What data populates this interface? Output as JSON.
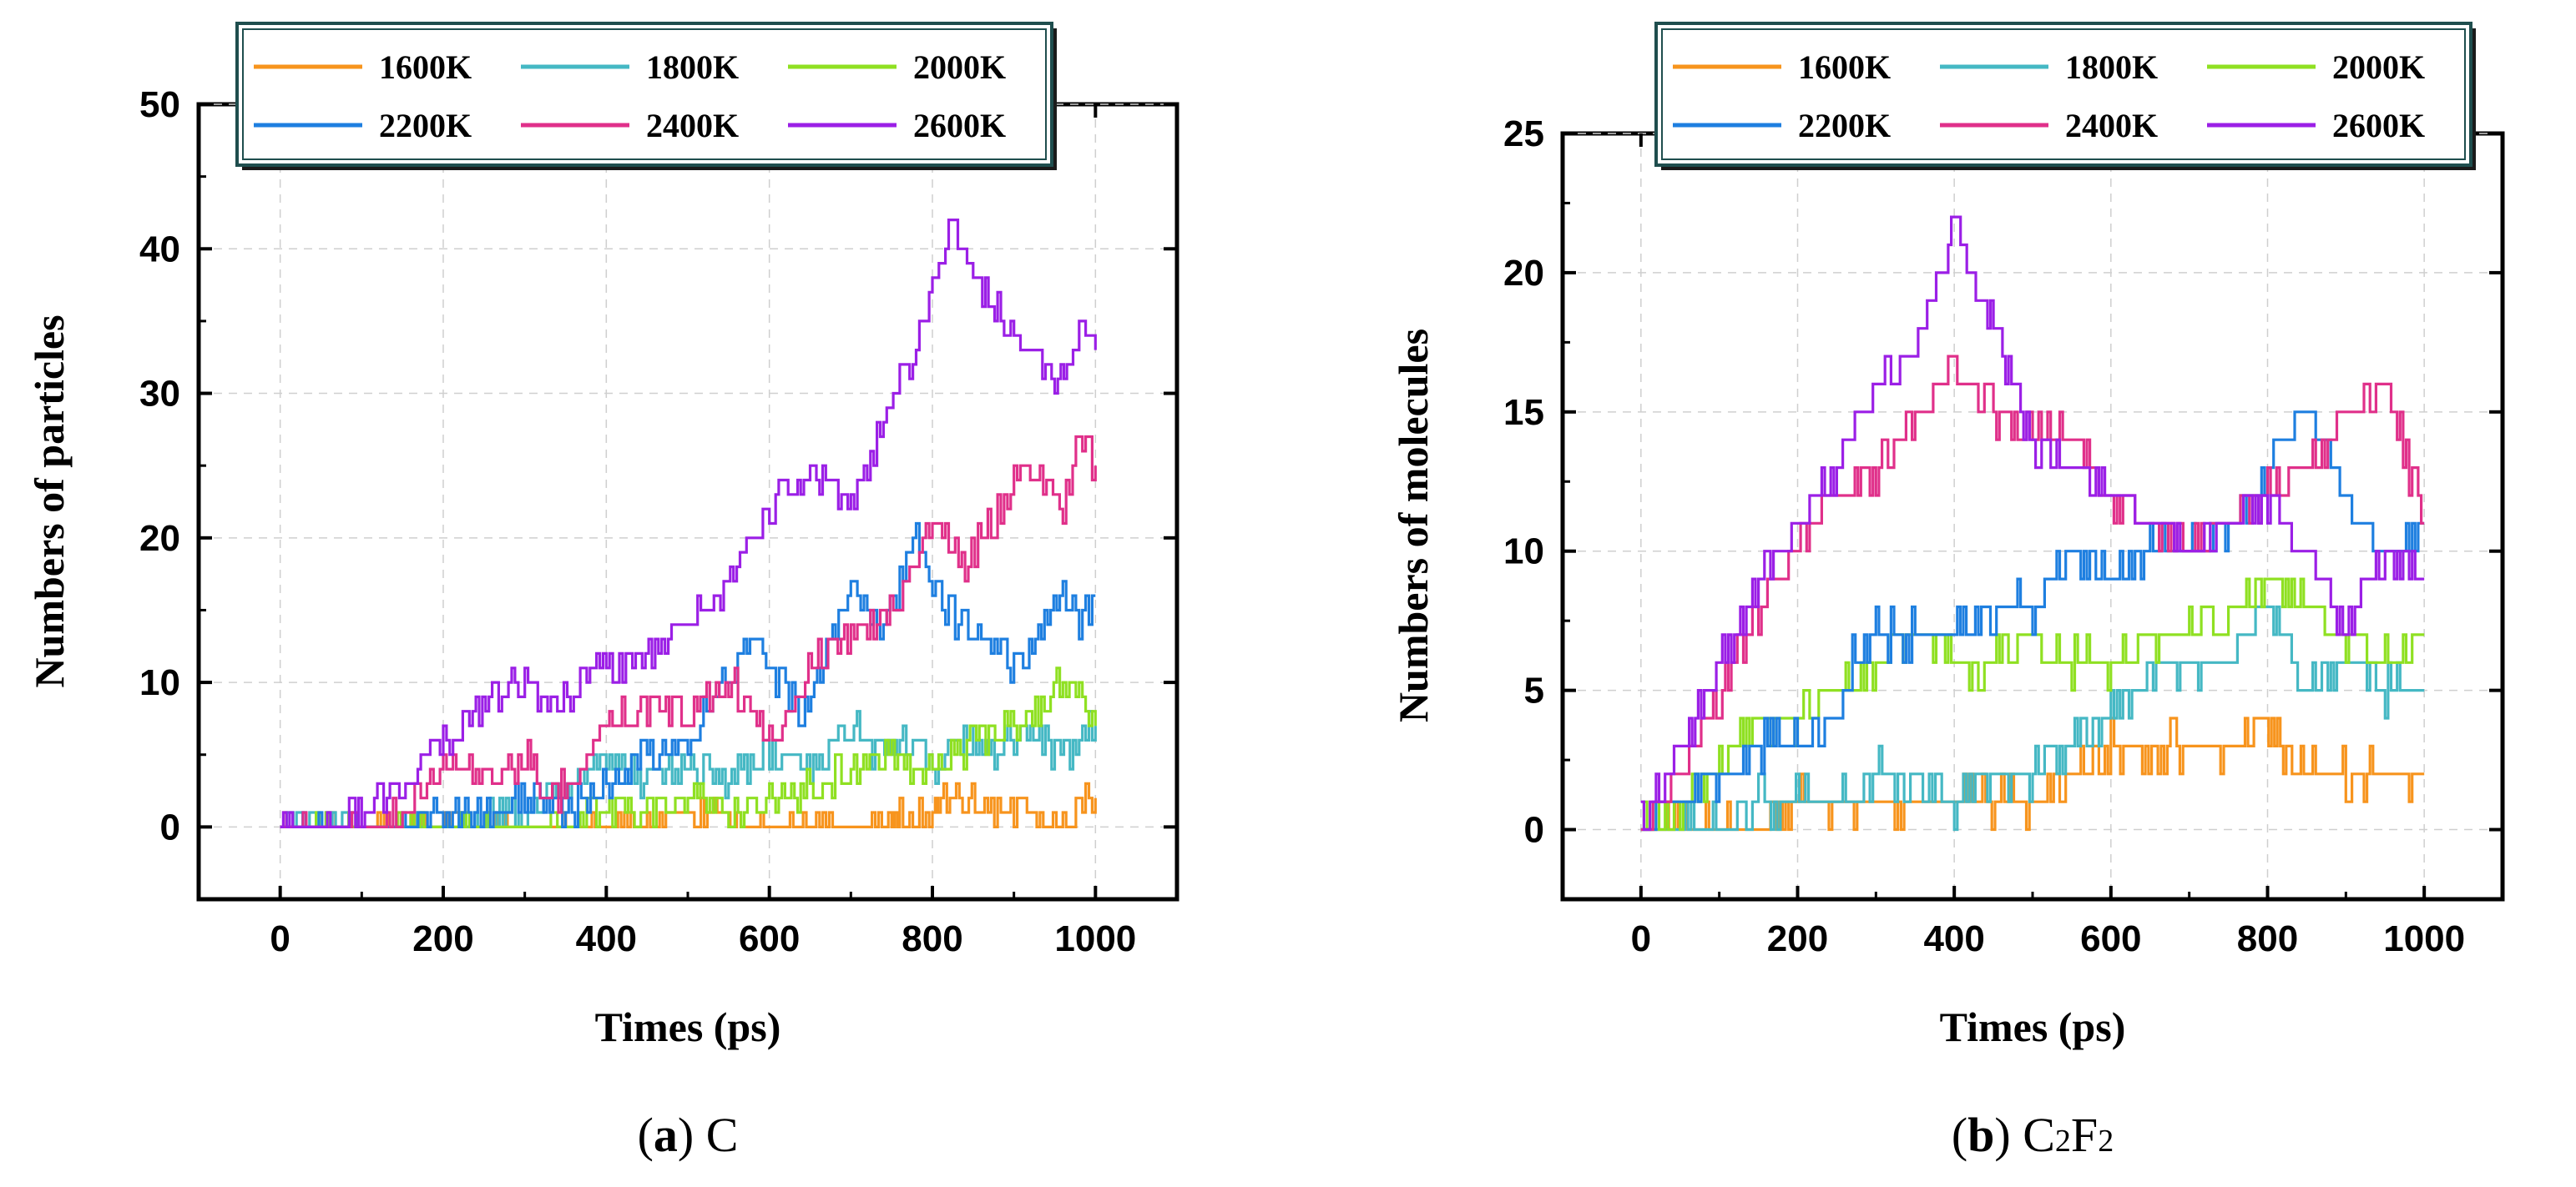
{
  "colors": {
    "1600K": "#F7941D",
    "1800K": "#45B8C4",
    "2000K": "#8FE022",
    "2200K": "#1E7FE0",
    "2400K": "#E0308A",
    "2600K": "#9B1FE6"
  },
  "legend_labels": [
    "1600K",
    "1800K",
    "2000K",
    "2200K",
    "2400K",
    "2600K"
  ],
  "captions": {
    "a": {
      "letter": "a",
      "label": "C"
    },
    "b": {
      "letter": "b",
      "label_main": "C",
      "sub1": "2",
      "mid": "F",
      "sub2": "2"
    }
  },
  "chart_data": [
    {
      "type": "line",
      "panel": "a",
      "title": "",
      "xlabel": "Times (ps)",
      "ylabel": "Numbers  of  particles",
      "xlim": [
        -100,
        1100
      ],
      "ylim": [
        -5,
        50
      ],
      "xticks": [
        0,
        200,
        400,
        600,
        800,
        1000
      ],
      "yticks": [
        0,
        10,
        20,
        30,
        40,
        50
      ],
      "grid": true,
      "legend": "top",
      "series": [
        {
          "name": "1600K",
          "points": [
            [
              0,
              0
            ],
            [
              450,
              0
            ],
            [
              500,
              1
            ],
            [
              560,
              1
            ],
            [
              565,
              0
            ],
            [
              750,
              0
            ],
            [
              760,
              1
            ],
            [
              800,
              1
            ],
            [
              810,
              2
            ],
            [
              860,
              2
            ],
            [
              880,
              1
            ],
            [
              940,
              1
            ],
            [
              960,
              0
            ],
            [
              980,
              1
            ],
            [
              1000,
              2
            ]
          ]
        },
        {
          "name": "1800K",
          "points": [
            [
              0,
              0
            ],
            [
              200,
              0
            ],
            [
              250,
              1
            ],
            [
              300,
              1
            ],
            [
              350,
              3
            ],
            [
              400,
              5
            ],
            [
              450,
              3
            ],
            [
              500,
              4
            ],
            [
              550,
              3
            ],
            [
              600,
              5
            ],
            [
              650,
              4
            ],
            [
              700,
              7
            ],
            [
              730,
              5
            ],
            [
              760,
              6
            ],
            [
              800,
              4
            ],
            [
              850,
              6
            ],
            [
              880,
              5
            ],
            [
              920,
              7
            ],
            [
              950,
              5
            ],
            [
              980,
              6
            ],
            [
              1000,
              7
            ]
          ]
        },
        {
          "name": "2000K",
          "points": [
            [
              0,
              0
            ],
            [
              300,
              0
            ],
            [
              400,
              1
            ],
            [
              450,
              1
            ],
            [
              500,
              2
            ],
            [
              550,
              1
            ],
            [
              600,
              2
            ],
            [
              650,
              3
            ],
            [
              700,
              4
            ],
            [
              750,
              5
            ],
            [
              800,
              4
            ],
            [
              850,
              6
            ],
            [
              900,
              7
            ],
            [
              930,
              8
            ],
            [
              960,
              10
            ],
            [
              980,
              9
            ],
            [
              1000,
              7
            ]
          ]
        },
        {
          "name": "2200K",
          "points": [
            [
              0,
              0
            ],
            [
              150,
              0
            ],
            [
              200,
              1
            ],
            [
              250,
              1
            ],
            [
              300,
              2
            ],
            [
              350,
              1
            ],
            [
              400,
              3
            ],
            [
              450,
              5
            ],
            [
              500,
              6
            ],
            [
              550,
              10
            ],
            [
              580,
              13
            ],
            [
              600,
              11
            ],
            [
              640,
              8
            ],
            [
              670,
              12
            ],
            [
              700,
              17
            ],
            [
              740,
              14
            ],
            [
              780,
              20
            ],
            [
              800,
              17
            ],
            [
              820,
              15
            ],
            [
              860,
              13
            ],
            [
              900,
              11
            ],
            [
              930,
              13
            ],
            [
              960,
              17
            ],
            [
              980,
              14
            ],
            [
              1000,
              16
            ]
          ]
        },
        {
          "name": "2400K",
          "points": [
            [
              0,
              0
            ],
            [
              100,
              0
            ],
            [
              150,
              1
            ],
            [
              180,
              3
            ],
            [
              220,
              5
            ],
            [
              260,
              3
            ],
            [
              300,
              5
            ],
            [
              330,
              2
            ],
            [
              360,
              3
            ],
            [
              400,
              7
            ],
            [
              450,
              8
            ],
            [
              500,
              8
            ],
            [
              550,
              10
            ],
            [
              600,
              6
            ],
            [
              640,
              10
            ],
            [
              680,
              13
            ],
            [
              720,
              14
            ],
            [
              760,
              16
            ],
            [
              800,
              22
            ],
            [
              840,
              18
            ],
            [
              880,
              22
            ],
            [
              920,
              25
            ],
            [
              960,
              22
            ],
            [
              980,
              27
            ],
            [
              1000,
              25
            ]
          ]
        },
        {
          "name": "2600K",
          "points": [
            [
              0,
              0
            ],
            [
              50,
              0
            ],
            [
              100,
              1
            ],
            [
              150,
              3
            ],
            [
              180,
              5
            ],
            [
              220,
              7
            ],
            [
              260,
              9
            ],
            [
              300,
              10
            ],
            [
              340,
              8
            ],
            [
              380,
              11
            ],
            [
              420,
              11
            ],
            [
              460,
              12
            ],
            [
              500,
              14
            ],
            [
              540,
              16
            ],
            [
              560,
              18
            ],
            [
              600,
              22
            ],
            [
              650,
              25
            ],
            [
              700,
              22
            ],
            [
              740,
              28
            ],
            [
              780,
              33
            ],
            [
              820,
              42
            ],
            [
              850,
              37
            ],
            [
              880,
              36
            ],
            [
              920,
              33
            ],
            [
              950,
              31
            ],
            [
              980,
              34
            ],
            [
              1000,
              33
            ]
          ]
        }
      ]
    },
    {
      "type": "line",
      "panel": "b",
      "title": "",
      "xlabel": "Times (ps)",
      "ylabel": "Numbers  of  molecules",
      "xlim": [
        -100,
        1100
      ],
      "ylim": [
        -2.5,
        25
      ],
      "xticks": [
        0,
        200,
        400,
        600,
        800,
        1000
      ],
      "yticks": [
        0,
        5,
        10,
        15,
        20,
        25
      ],
      "grid": true,
      "legend": "top",
      "series": [
        {
          "name": "1600K",
          "points": [
            [
              0,
              0
            ],
            [
              150,
              0
            ],
            [
              200,
              1
            ],
            [
              400,
              1
            ],
            [
              500,
              1
            ],
            [
              550,
              2
            ],
            [
              600,
              3
            ],
            [
              700,
              3
            ],
            [
              760,
              3
            ],
            [
              790,
              4
            ],
            [
              820,
              3
            ],
            [
              850,
              2
            ],
            [
              900,
              2
            ],
            [
              950,
              2
            ],
            [
              1000,
              2
            ]
          ]
        },
        {
          "name": "1800K",
          "points": [
            [
              0,
              0
            ],
            [
              100,
              0
            ],
            [
              150,
              1
            ],
            [
              250,
              1
            ],
            [
              300,
              2
            ],
            [
              400,
              1
            ],
            [
              450,
              2
            ],
            [
              500,
              2
            ],
            [
              550,
              3
            ],
            [
              600,
              4
            ],
            [
              650,
              6
            ],
            [
              700,
              6
            ],
            [
              750,
              6
            ],
            [
              800,
              8
            ],
            [
              850,
              5
            ],
            [
              900,
              6
            ],
            [
              950,
              5
            ],
            [
              1000,
              5
            ]
          ]
        },
        {
          "name": "2000K",
          "points": [
            [
              0,
              0
            ],
            [
              50,
              1
            ],
            [
              100,
              2
            ],
            [
              150,
              4
            ],
            [
              200,
              4
            ],
            [
              250,
              5
            ],
            [
              300,
              6
            ],
            [
              350,
              7
            ],
            [
              400,
              6
            ],
            [
              450,
              6
            ],
            [
              500,
              7
            ],
            [
              550,
              6
            ],
            [
              600,
              6
            ],
            [
              650,
              7
            ],
            [
              700,
              7
            ],
            [
              750,
              8
            ],
            [
              800,
              9
            ],
            [
              850,
              8
            ],
            [
              900,
              7
            ],
            [
              950,
              6
            ],
            [
              1000,
              7
            ]
          ]
        },
        {
          "name": "2200K",
          "points": [
            [
              0,
              0
            ],
            [
              50,
              1
            ],
            [
              100,
              2
            ],
            [
              150,
              3
            ],
            [
              200,
              3
            ],
            [
              250,
              4
            ],
            [
              270,
              6
            ],
            [
              300,
              7
            ],
            [
              350,
              7
            ],
            [
              400,
              7
            ],
            [
              450,
              8
            ],
            [
              500,
              8
            ],
            [
              550,
              10
            ],
            [
              600,
              9
            ],
            [
              650,
              10
            ],
            [
              700,
              10
            ],
            [
              750,
              11
            ],
            [
              800,
              13
            ],
            [
              850,
              15
            ],
            [
              900,
              12
            ],
            [
              950,
              10
            ],
            [
              1000,
              11
            ]
          ]
        },
        {
          "name": "2400K",
          "points": [
            [
              0,
              0
            ],
            [
              50,
              2
            ],
            [
              100,
              5
            ],
            [
              150,
              8
            ],
            [
              200,
              10
            ],
            [
              250,
              12
            ],
            [
              300,
              13
            ],
            [
              350,
              15
            ],
            [
              400,
              17
            ],
            [
              450,
              15
            ],
            [
              500,
              14
            ],
            [
              550,
              14
            ],
            [
              600,
              12
            ],
            [
              650,
              11
            ],
            [
              700,
              10
            ],
            [
              750,
              11
            ],
            [
              800,
              12
            ],
            [
              850,
              13
            ],
            [
              900,
              15
            ],
            [
              950,
              16
            ],
            [
              1000,
              11
            ]
          ]
        },
        {
          "name": "2600K",
          "points": [
            [
              0,
              0
            ],
            [
              50,
              3
            ],
            [
              100,
              6
            ],
            [
              150,
              9
            ],
            [
              200,
              11
            ],
            [
              250,
              13
            ],
            [
              300,
              16
            ],
            [
              350,
              17
            ],
            [
              400,
              22
            ],
            [
              420,
              20
            ],
            [
              450,
              18
            ],
            [
              500,
              14
            ],
            [
              550,
              13
            ],
            [
              600,
              12
            ],
            [
              650,
              11
            ],
            [
              700,
              10
            ],
            [
              750,
              11
            ],
            [
              800,
              12
            ],
            [
              850,
              10
            ],
            [
              900,
              7
            ],
            [
              950,
              10
            ],
            [
              1000,
              9
            ]
          ]
        }
      ]
    }
  ]
}
